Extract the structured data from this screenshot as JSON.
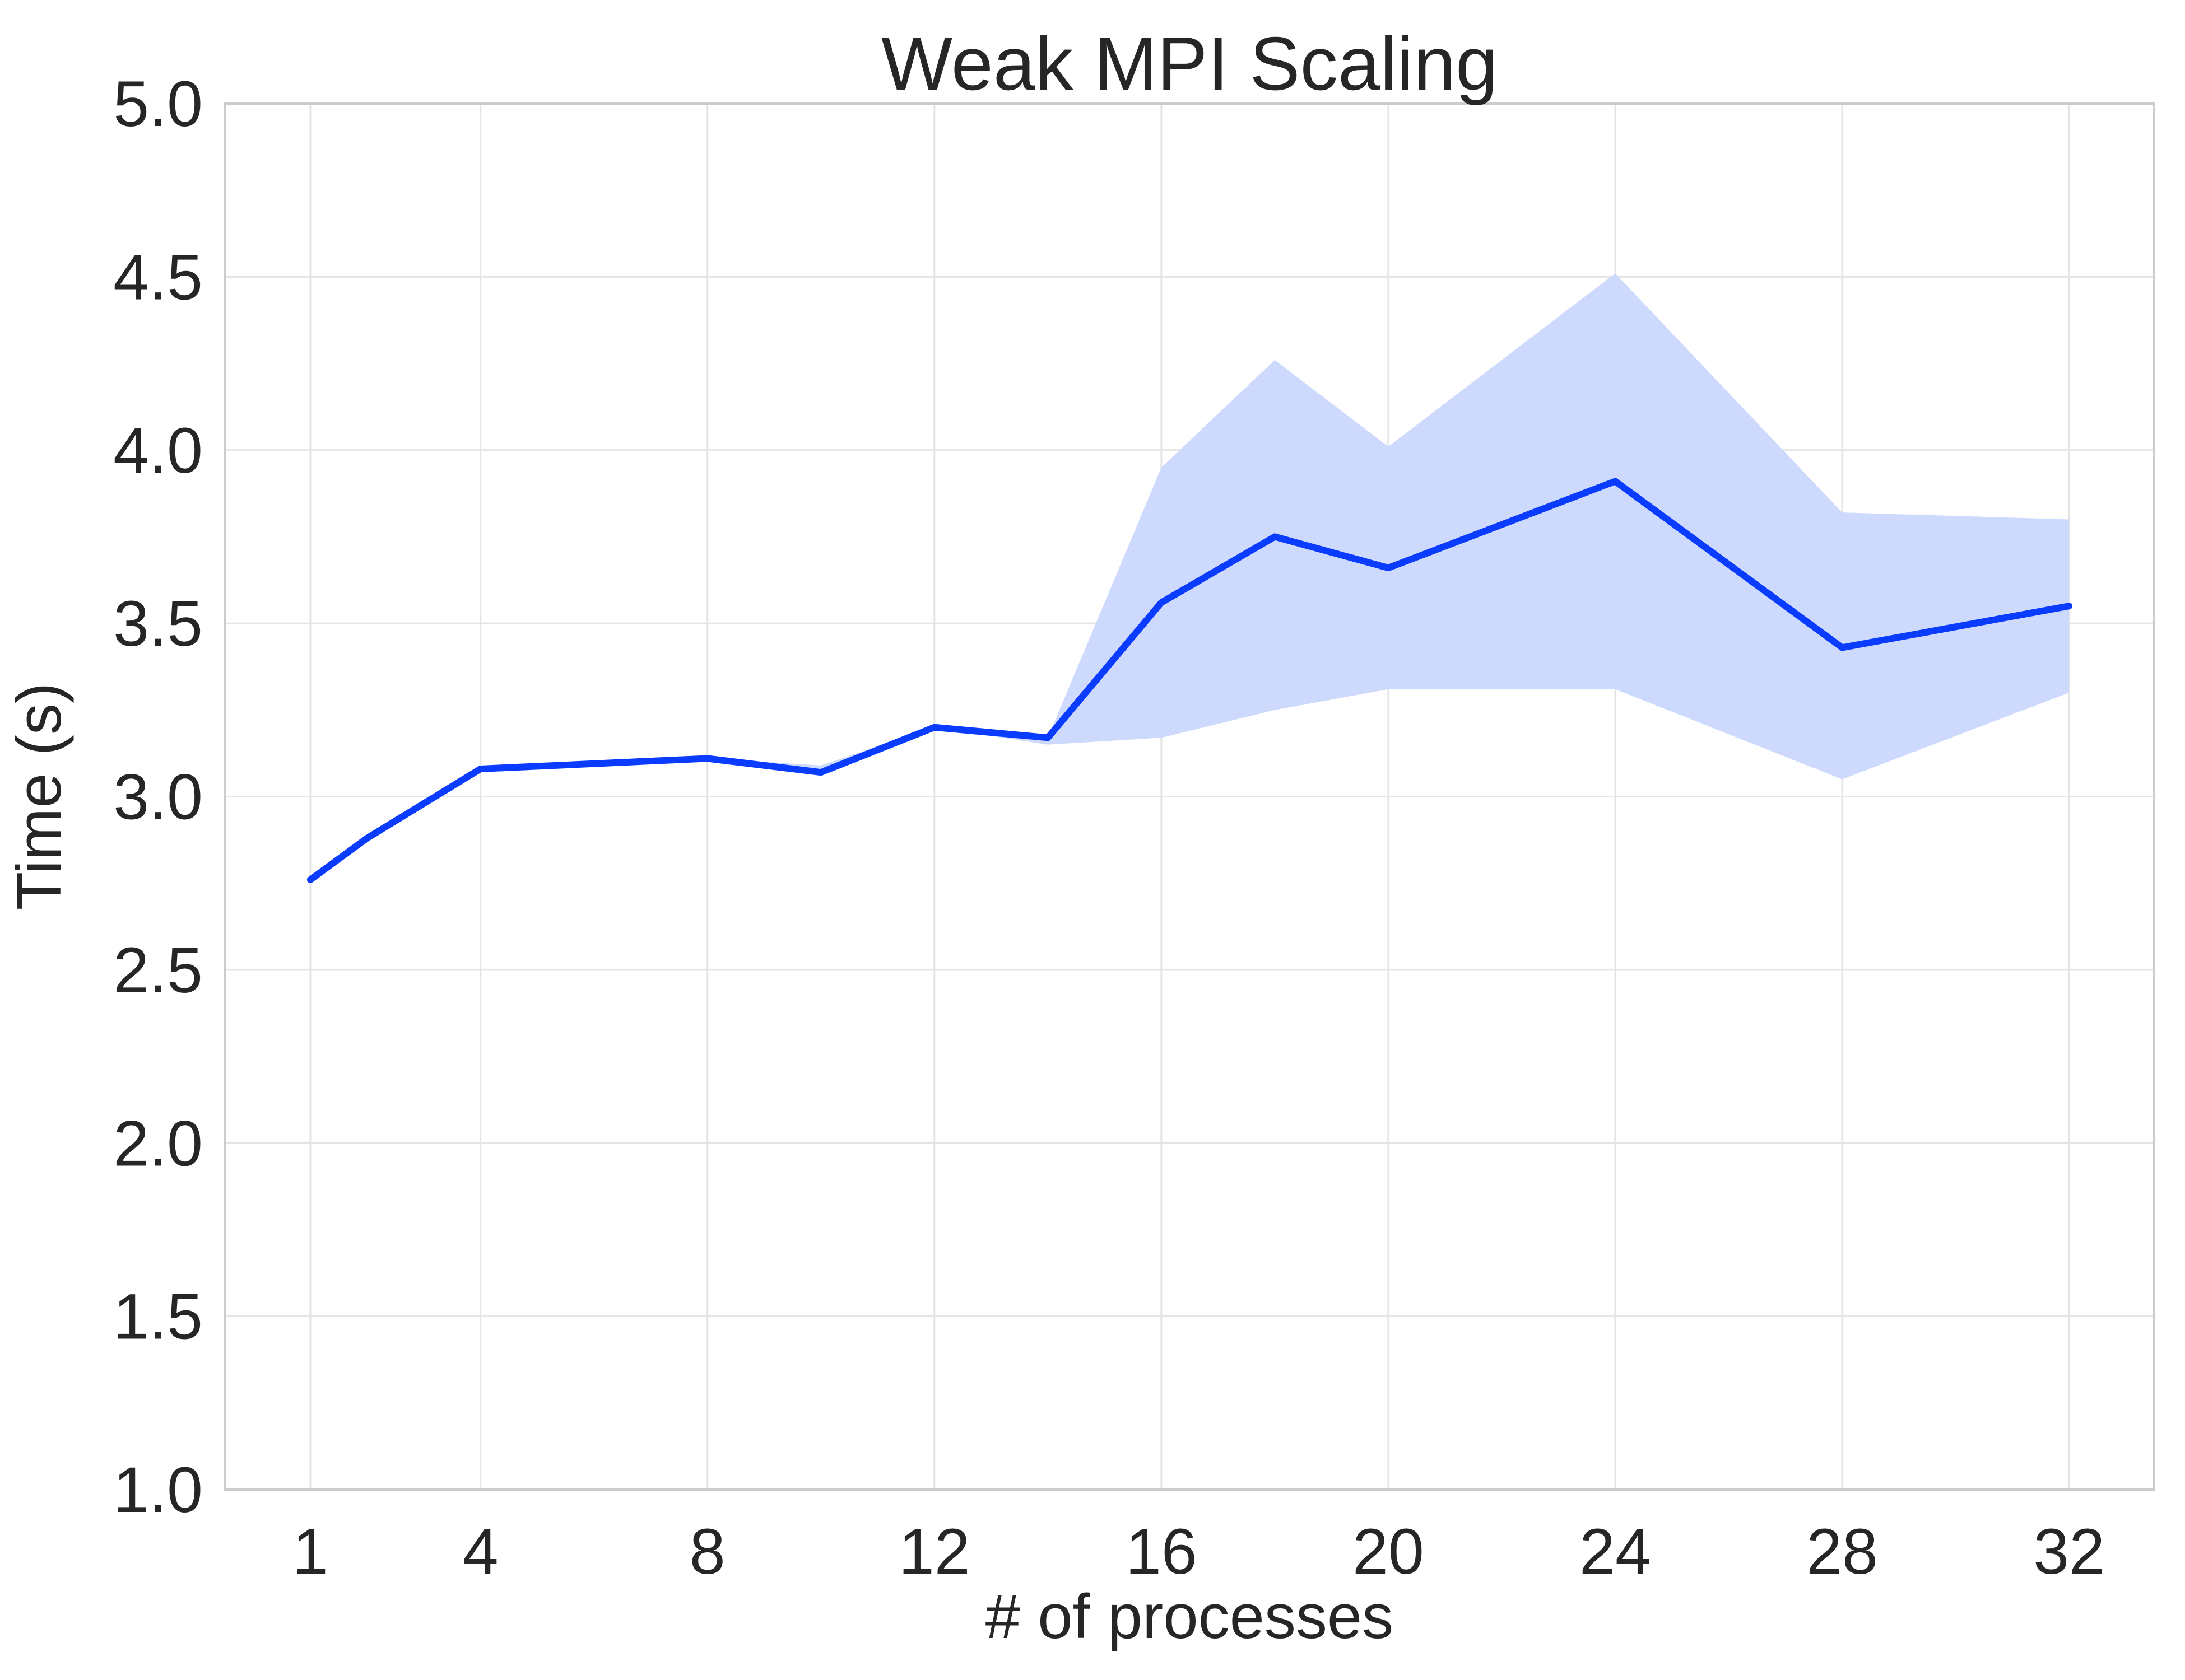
{
  "chart_data": {
    "type": "line",
    "title": "Weak MPI Scaling",
    "xlabel": "# of processes",
    "ylabel": "Time (s)",
    "xlim": [
      -0.5,
      33.5
    ],
    "ylim": [
      1.0,
      5.0
    ],
    "xticks": [
      1,
      4,
      8,
      12,
      16,
      20,
      24,
      28,
      32
    ],
    "yticks": [
      1.0,
      1.5,
      2.0,
      2.5,
      3.0,
      3.5,
      4.0,
      4.5,
      5.0
    ],
    "grid": true,
    "colors": {
      "line": "#0a3cff",
      "band": "#cdd9fd"
    },
    "series": [
      {
        "x": [
          1,
          2,
          4,
          8,
          10,
          12,
          14,
          16,
          18,
          20,
          24,
          28,
          32
        ],
        "values": [
          2.76,
          2.88,
          3.08,
          3.11,
          3.07,
          3.2,
          3.17,
          3.56,
          3.75,
          3.66,
          3.91,
          3.43,
          3.55
        ],
        "band_lower": [
          2.76,
          2.88,
          3.08,
          3.11,
          3.06,
          3.2,
          3.15,
          3.17,
          3.25,
          3.31,
          3.31,
          3.05,
          3.3
        ],
        "band_upper": [
          2.76,
          2.88,
          3.08,
          3.11,
          3.09,
          3.2,
          3.17,
          3.95,
          4.26,
          4.01,
          4.51,
          3.82,
          3.8
        ]
      }
    ]
  }
}
